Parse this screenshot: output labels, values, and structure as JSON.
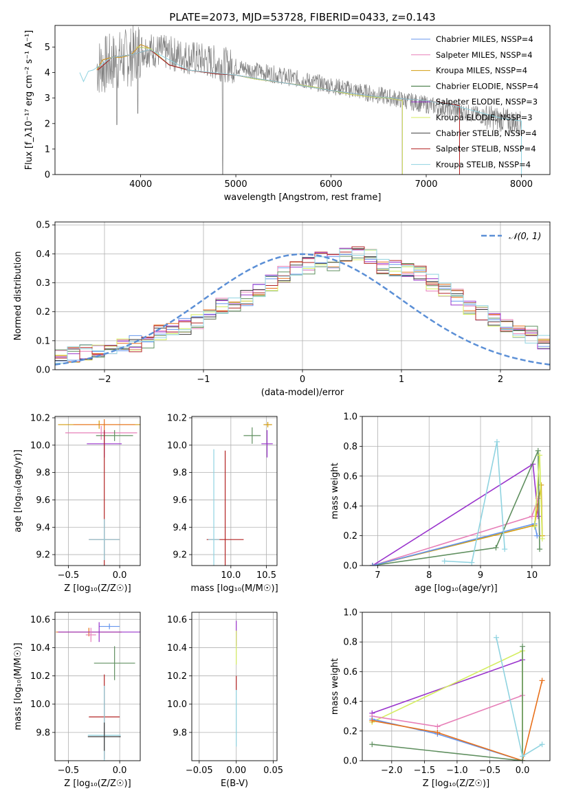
{
  "colors": {
    "Chabrier MILES": "#6495ed",
    "Salpeter MILES": "#e77fb8",
    "Kroupa MILES": "#d39b0c",
    "Chabrier ELODIE": "#2f6b2f",
    "Salpeter ELODIE": "#9932cc",
    "Kroupa ELODIE": "#d4ed5f",
    "Chabrier STELIB": "#3a3a3a",
    "Salpeter STELIB": "#b22222",
    "Kroupa STELIB": "#8fd3e0",
    "extra_green": "#5f8f5f",
    "extra_orange": "#e8701a",
    "data": "#808080",
    "gaussian": "#5b8fd6"
  },
  "chart_data": [
    {
      "id": "spectrum",
      "type": "line",
      "title": "PLATE=2073, MJD=53728, FIBERID=0433, z=0.143",
      "xlabel": "wavelength [Angstrom, rest frame]",
      "ylabel": "Flux [f_λ10⁻¹⁷ erg cm⁻² s⁻¹ A⁻¹]",
      "xlim": [
        3100,
        8300
      ],
      "ylim": [
        0,
        5.85
      ],
      "xticks": [
        4000,
        5000,
        6000,
        7000,
        8000
      ],
      "yticks": [
        0,
        1,
        2,
        3,
        4,
        5
      ],
      "legend": "top-right",
      "series": [
        {
          "name": "Chabrier MILES, N_SSP=4",
          "x": [
            3540,
            3600,
            3700,
            3800,
            3900,
            4000,
            4100,
            4300,
            4500,
            4800,
            5000,
            5200,
            5500,
            5800,
            6000,
            6200,
            6400,
            6600,
            6750
          ],
          "values": [
            4.1,
            4.5,
            4.6,
            4.6,
            4.7,
            5.1,
            4.95,
            4.3,
            4.1,
            3.95,
            3.9,
            3.75,
            3.6,
            3.45,
            3.3,
            3.15,
            3.05,
            3.0,
            2.9
          ]
        },
        {
          "name": "Salpeter MILES, N_SSP=4",
          "x": [
            3540,
            3600,
            3700,
            3800,
            3900,
            4000,
            4100,
            4300,
            4500,
            4800,
            5000,
            5200,
            5500,
            5800,
            6000,
            6200,
            6400,
            6600,
            6750
          ],
          "values": [
            4.1,
            4.5,
            4.6,
            4.6,
            4.7,
            5.1,
            4.95,
            4.3,
            4.1,
            3.95,
            3.9,
            3.75,
            3.6,
            3.45,
            3.3,
            3.15,
            3.05,
            3.0,
            2.9
          ]
        },
        {
          "name": "Kroupa MILES, N_SSP=4",
          "x": [
            3540,
            3600,
            3700,
            3800,
            3900,
            4000,
            4100,
            4300,
            4500,
            4800,
            5000,
            5200,
            5500,
            5800,
            6000,
            6200,
            6400,
            6600,
            6750
          ],
          "values": [
            4.1,
            4.5,
            4.6,
            4.6,
            4.7,
            5.1,
            4.95,
            4.3,
            4.1,
            3.95,
            3.9,
            3.75,
            3.6,
            3.45,
            3.3,
            3.15,
            3.05,
            3.0,
            2.9
          ]
        },
        {
          "name": "Chabrier ELODIE, N_SSP=4",
          "x": [
            3950,
            4100,
            4300,
            4500,
            4800,
            5000,
            5200,
            5500,
            5800,
            6000,
            6200,
            6400,
            6600,
            6750
          ],
          "values": [
            5.0,
            4.95,
            4.3,
            4.1,
            3.95,
            3.9,
            3.75,
            3.6,
            3.45,
            3.3,
            3.15,
            3.05,
            3.0,
            2.9
          ]
        },
        {
          "name": "Salpeter ELODIE, N_SSP=3",
          "x": [
            3950,
            4100,
            4300,
            4500,
            4800,
            5000,
            5200,
            5500,
            5800,
            6000,
            6200,
            6400,
            6600,
            6750
          ],
          "values": [
            5.0,
            4.95,
            4.3,
            4.1,
            3.95,
            3.9,
            3.75,
            3.6,
            3.45,
            3.3,
            3.15,
            3.05,
            3.0,
            2.9
          ]
        },
        {
          "name": "Kroupa ELODIE, N_SSP=3",
          "x": [
            3950,
            4100,
            4300,
            4500,
            4800,
            5000,
            5200,
            5500,
            5800,
            6000,
            6200,
            6400,
            6600,
            6750
          ],
          "values": [
            5.0,
            4.95,
            4.3,
            4.1,
            3.95,
            3.9,
            3.75,
            3.6,
            3.45,
            3.3,
            3.15,
            3.05,
            3.0,
            2.9
          ]
        },
        {
          "name": "Chabrier STELIB, N_SSP=4",
          "x": [
            3550,
            3700,
            3900,
            4100,
            4300,
            4500,
            4800,
            5000,
            5500,
            6000,
            6500,
            7000,
            7350
          ],
          "values": [
            4.1,
            4.6,
            4.7,
            4.9,
            4.3,
            4.1,
            3.95,
            3.9,
            3.6,
            3.3,
            3.05,
            2.9,
            2.7
          ]
        },
        {
          "name": "Salpeter STELIB, N_SSP=4",
          "x": [
            3550,
            3700,
            3900,
            4100,
            4300,
            4500,
            4800,
            5000,
            5500,
            6000,
            6500,
            7000,
            7350
          ],
          "values": [
            4.1,
            4.6,
            4.7,
            4.9,
            4.3,
            4.1,
            3.95,
            3.9,
            3.6,
            3.3,
            3.05,
            2.9,
            2.7
          ]
        },
        {
          "name": "Kroupa STELIB, N_SSP=4",
          "x": [
            3360,
            3400,
            3450,
            3500,
            3700,
            3900,
            4100,
            4500,
            5000,
            5500,
            6000,
            6500,
            7000,
            7300,
            7600,
            7800,
            8000
          ],
          "values": [
            4.0,
            3.65,
            4.05,
            4.1,
            4.6,
            4.7,
            4.9,
            4.1,
            3.9,
            3.6,
            3.3,
            3.05,
            2.9,
            2.7,
            2.4,
            2.2,
            2.1
          ]
        }
      ]
    },
    {
      "id": "residuals",
      "type": "histogram",
      "xlabel": "(data-model)/error",
      "ylabel": "Normed distribution",
      "xlim": [
        -2.5,
        2.5
      ],
      "ylim": [
        0,
        0.51
      ],
      "xticks": [
        -2,
        -1,
        0,
        1,
        2
      ],
      "yticks": [
        0.0,
        0.1,
        0.2,
        0.3,
        0.4,
        0.5
      ],
      "legend": "top-right",
      "gaussian_label": "𝒩(0, 1)",
      "bin_width": 0.125,
      "bin_start": -2.5,
      "base_values": [
        0.04,
        0.05,
        0.06,
        0.07,
        0.075,
        0.08,
        0.09,
        0.1,
        0.13,
        0.14,
        0.15,
        0.17,
        0.2,
        0.22,
        0.22,
        0.25,
        0.27,
        0.3,
        0.33,
        0.35,
        0.36,
        0.38,
        0.37,
        0.39,
        0.4,
        0.39,
        0.36,
        0.35,
        0.35,
        0.33,
        0.3,
        0.28,
        0.25,
        0.22,
        0.2,
        0.18,
        0.15,
        0.14,
        0.12,
        0.1
      ]
    },
    {
      "id": "age_vs_Z",
      "type": "scatter",
      "xlabel": "Z [log₁₀(Z/Z☉)]",
      "ylabel": "age  [log₁₀(age/yr)]",
      "xlim": [
        -0.63,
        0.2
      ],
      "ylim": [
        9.12,
        10.21
      ],
      "xticks": [
        -0.5,
        0.0
      ],
      "xtick_labels": [
        "−0.5",
        "0.0"
      ],
      "yticks": [
        9.2,
        9.4,
        9.6,
        9.8,
        10.0,
        10.2
      ],
      "points": [
        {
          "series": "Kroupa MILES",
          "x": -0.2,
          "y": 10.15,
          "xerr": 0.4,
          "yerr": 0.03
        },
        {
          "series": "extra_orange",
          "x": -0.15,
          "y": 10.15,
          "xerr": 0.3,
          "yerr": 0.04
        },
        {
          "series": "Salpeter MILES",
          "x": -0.18,
          "y": 10.09,
          "xerr": 0.35,
          "yerr": 0.05
        },
        {
          "series": "extra_green",
          "x": -0.05,
          "y": 10.07,
          "xerr": 0.18,
          "yerr": 0.04
        },
        {
          "series": "Salpeter ELODIE",
          "x": -0.15,
          "y": 10.01,
          "xerr": 0.17,
          "yerr": 0.1
        },
        {
          "series": "Salpeter STELIB",
          "x": -0.15,
          "y": 9.31,
          "xerr": 0.15,
          "yerr": 0.8
        },
        {
          "series": "Kroupa STELIB",
          "x": -0.15,
          "y": 9.31,
          "xerr": 0.15,
          "yerr": 0.15
        }
      ]
    },
    {
      "id": "age_vs_mass",
      "type": "scatter",
      "xlabel": "mass [log₁₀(M/M☉)]",
      "ylabel": "",
      "xlim": [
        9.45,
        10.65
      ],
      "ylim": [
        9.12,
        10.21
      ],
      "xticks": [
        10.0,
        10.5
      ],
      "yticks": [
        9.2,
        9.4,
        9.6,
        9.8,
        10.0,
        10.2
      ],
      "points": [
        {
          "series": "Kroupa MILES",
          "x": 10.52,
          "y": 10.15,
          "xerr": 0.06,
          "yerr": 0.02
        },
        {
          "series": "extra_green",
          "x": 10.3,
          "y": 10.07,
          "xerr": 0.12,
          "yerr": 0.06
        },
        {
          "series": "Salpeter ELODIE",
          "x": 10.51,
          "y": 10.01,
          "xerr": 0.08,
          "yerr": 0.1
        },
        {
          "series": "Salpeter STELIB",
          "x": 9.92,
          "y": 9.31,
          "xerr": 0.26,
          "yerr": 0.65
        },
        {
          "series": "Kroupa STELIB",
          "x": 9.76,
          "y": 9.31,
          "xerr": 0.08,
          "yerr": 0.66
        }
      ]
    },
    {
      "id": "mass_weight_vs_age",
      "type": "line",
      "xlabel": "age  [log₁₀(age/yr)]",
      "ylabel": "mass weight",
      "xlim": [
        6.7,
        10.35
      ],
      "ylim": [
        0.0,
        1.0
      ],
      "xticks": [
        7,
        8,
        9,
        10
      ],
      "yticks": [
        0.0,
        0.2,
        0.4,
        0.6,
        0.8,
        1.0
      ],
      "series": [
        {
          "series": "Salpeter ELODIE",
          "x": [
            6.9,
            10.02,
            10.12
          ],
          "y": [
            0.0,
            0.68,
            0.33
          ]
        },
        {
          "series": "Salpeter MILES",
          "x": [
            6.9,
            10.0,
            10.12,
            10.15
          ],
          "y": [
            0.0,
            0.33,
            0.45,
            0.2
          ]
        },
        {
          "series": "Kroupa MILES",
          "x": [
            6.9,
            10.05,
            10.18,
            10.2
          ],
          "y": [
            0.0,
            0.27,
            0.54,
            0.2
          ]
        },
        {
          "series": "extra_green",
          "x": [
            6.9,
            9.3,
            10.12,
            10.15
          ],
          "y": [
            0.0,
            0.12,
            0.77,
            0.11
          ]
        },
        {
          "series": "Chabrier MILES",
          "x": [
            6.9,
            10.05,
            10.1
          ],
          "y": [
            0.0,
            0.28,
            0.2
          ]
        },
        {
          "series": "Kroupa STELIB",
          "x": [
            8.3,
            8.83,
            9.32,
            9.47
          ],
          "y": [
            0.03,
            0.02,
            0.83,
            0.11
          ]
        },
        {
          "series": "Kroupa ELODIE",
          "x": [
            10.05,
            10.15,
            10.2
          ],
          "y": [
            0.26,
            0.74,
            0.18
          ]
        }
      ]
    },
    {
      "id": "mass_vs_Z",
      "type": "scatter",
      "xlabel": "Z [log₁₀(Z/Z☉)]",
      "ylabel": "mass [log₁₀(M/M☉)]",
      "xlim": [
        -0.63,
        0.2
      ],
      "ylim": [
        9.6,
        10.65
      ],
      "xticks": [
        -0.5,
        0.0
      ],
      "xtick_labels": [
        "−0.5",
        "0.0"
      ],
      "yticks": [
        9.8,
        10.0,
        10.2,
        10.4,
        10.6
      ],
      "points": [
        {
          "series": "Chabrier MILES",
          "x": -0.1,
          "y": 10.55,
          "xerr": 0.1,
          "yerr": 0.02
        },
        {
          "series": "extra_orange",
          "x": -0.3,
          "y": 10.51,
          "xerr": 0.32,
          "yerr": 0.03
        },
        {
          "series": "Salpeter ELODIE",
          "x": -0.2,
          "y": 10.51,
          "xerr": 0.4,
          "yerr": 0.07
        },
        {
          "series": "Salpeter MILES",
          "x": -0.28,
          "y": 10.49,
          "xerr": 0.05,
          "yerr": 0.05
        },
        {
          "series": "extra_green",
          "x": -0.05,
          "y": 10.29,
          "xerr": 0.2,
          "yerr": 0.12
        },
        {
          "series": "Salpeter STELIB",
          "x": -0.15,
          "y": 9.91,
          "xerr": 0.15,
          "yerr": 0.3
        },
        {
          "series": "Kroupa STELIB",
          "x": -0.15,
          "y": 9.78,
          "xerr": 0.16,
          "yerr": 0.35
        },
        {
          "series": "Chabrier STELIB",
          "x": -0.15,
          "y": 9.77,
          "xerr": 0.16,
          "yerr": 0.1
        }
      ]
    },
    {
      "id": "mass_vs_EBV",
      "type": "scatter",
      "xlabel": "E(B-V)",
      "ylabel": "",
      "xlim": [
        -0.06,
        0.055
      ],
      "ylim": [
        9.6,
        10.65
      ],
      "xticks": [
        -0.05,
        0.0,
        0.05
      ],
      "xtick_labels": [
        "−0.05",
        "0.00",
        "0.05"
      ],
      "yticks": [
        9.8,
        10.0,
        10.2,
        10.4,
        10.6
      ],
      "points": [
        {
          "series": "Salpeter ELODIE",
          "x": 0.0,
          "y": 10.5,
          "xerr": 0.0,
          "yerr": 0.09
        },
        {
          "series": "Kroupa ELODIE",
          "x": 0.0,
          "y": 10.4,
          "xerr": 0.0,
          "yerr": 0.12
        },
        {
          "series": "Salpeter STELIB",
          "x": 0.0,
          "y": 10.15,
          "xerr": 0.0,
          "yerr": 0.05
        },
        {
          "series": "Kroupa STELIB",
          "x": 0.0,
          "y": 9.9,
          "xerr": 0.0,
          "yerr": 0.2
        }
      ]
    },
    {
      "id": "mass_weight_vs_Z",
      "type": "line",
      "xlabel": "Z [log₁₀(Z/Z☉)]",
      "ylabel": "mass weight",
      "xlim": [
        -2.45,
        0.42
      ],
      "ylim": [
        0.0,
        1.0
      ],
      "xticks": [
        -2.0,
        -1.5,
        -1.0,
        -0.5,
        0.0
      ],
      "xtick_labels": [
        "−2.0",
        "−1.5",
        "−1.0",
        "−0.5",
        "0.0"
      ],
      "yticks": [
        0.0,
        0.2,
        0.4,
        0.6,
        0.8,
        1.0
      ],
      "series": [
        {
          "series": "Salpeter ELODIE",
          "x": [
            -2.3,
            0.0
          ],
          "y": [
            0.32,
            0.68
          ]
        },
        {
          "series": "Kroupa ELODIE",
          "x": [
            -2.3,
            0.0,
            0.0
          ],
          "y": [
            0.26,
            0.74,
            0.0
          ]
        },
        {
          "series": "Salpeter MILES",
          "x": [
            -2.3,
            -1.3,
            0.0
          ],
          "y": [
            0.3,
            0.23,
            0.44
          ]
        },
        {
          "series": "Chabrier MILES",
          "x": [
            -2.3,
            -1.3,
            0.0
          ],
          "y": [
            0.28,
            0.18,
            0.0
          ]
        },
        {
          "series": "extra_orange",
          "x": [
            -2.3,
            -1.3,
            0.0,
            0.3
          ],
          "y": [
            0.27,
            0.19,
            0.0,
            0.54
          ]
        },
        {
          "series": "extra_green",
          "x": [
            -2.3,
            0.0,
            0.0
          ],
          "y": [
            0.11,
            0.0,
            0.77
          ]
        },
        {
          "series": "Kroupa STELIB",
          "x": [
            -0.4,
            0.0,
            0.3
          ],
          "y": [
            0.83,
            0.03,
            0.11
          ]
        }
      ]
    }
  ]
}
